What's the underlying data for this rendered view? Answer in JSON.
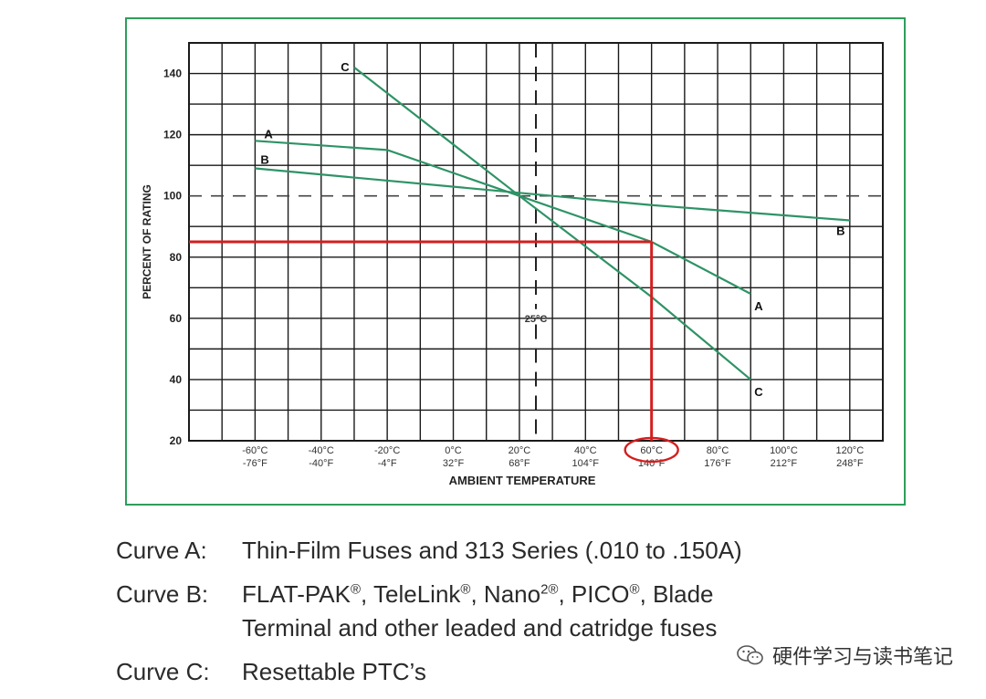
{
  "chart_data": {
    "type": "line",
    "xlabel": "AMBIENT TEMPERATURE",
    "ylabel": "PERCENT OF RATING",
    "x_ticks": [
      {
        "c": -60,
        "label_c": "-60°C",
        "label_f": "-76°F"
      },
      {
        "c": -40,
        "label_c": "-40°C",
        "label_f": "-40°F"
      },
      {
        "c": -20,
        "label_c": "-20°C",
        "label_f": "-4°F"
      },
      {
        "c": 0,
        "label_c": "0°C",
        "label_f": "32°F"
      },
      {
        "c": 20,
        "label_c": "20°C",
        "label_f": "68°F"
      },
      {
        "c": 40,
        "label_c": "40°C",
        "label_f": "104°F"
      },
      {
        "c": 60,
        "label_c": "60°C",
        "label_f": "140°F"
      },
      {
        "c": 80,
        "label_c": "80°C",
        "label_f": "176°F"
      },
      {
        "c": 100,
        "label_c": "100°C",
        "label_f": "212°F"
      },
      {
        "c": 120,
        "label_c": "120°C",
        "label_f": "248°F"
      }
    ],
    "y_ticks": [
      20,
      40,
      60,
      80,
      100,
      120,
      140
    ],
    "xlim": [
      -80,
      130
    ],
    "ylim": [
      20,
      150
    ],
    "reference_line_y": 100,
    "reference_line_x": 25,
    "reference_label": "25°C",
    "series": [
      {
        "name": "A",
        "x": [
          -60,
          -20,
          20,
          60,
          90
        ],
        "y": [
          118,
          115,
          100,
          85,
          68
        ]
      },
      {
        "name": "B",
        "x": [
          -60,
          20,
          60,
          120
        ],
        "y": [
          109,
          101,
          97,
          92
        ]
      },
      {
        "name": "C",
        "x": [
          -30,
          20,
          60,
          90
        ],
        "y": [
          142,
          100,
          67,
          40
        ]
      }
    ],
    "annotation": {
      "x": 60,
      "y": 85,
      "circled_tick": "60°C"
    },
    "colors": {
      "curve": "#2e9366",
      "grid": "#1a1a1a",
      "annotation": "#d41e1e",
      "frame": "#2e9e5a"
    }
  },
  "legend": [
    {
      "key": "Curve A:",
      "text": "Thin-Film Fuses and 313 Series (.010 to .150A)"
    },
    {
      "key": "Curve B:",
      "parts": [
        "FLAT-PAK",
        "®",
        ", TeleLink",
        "®",
        ", Nano",
        "2®",
        ", PICO",
        "®",
        ", Blade"
      ],
      "line2": "Terminal and other leaded and catridge fuses"
    },
    {
      "key": "Curve C:",
      "text": "Resettable PTC’s"
    }
  ],
  "watermark": {
    "text": "硬件学习与读书笔记",
    "icon": "wechat-icon"
  }
}
